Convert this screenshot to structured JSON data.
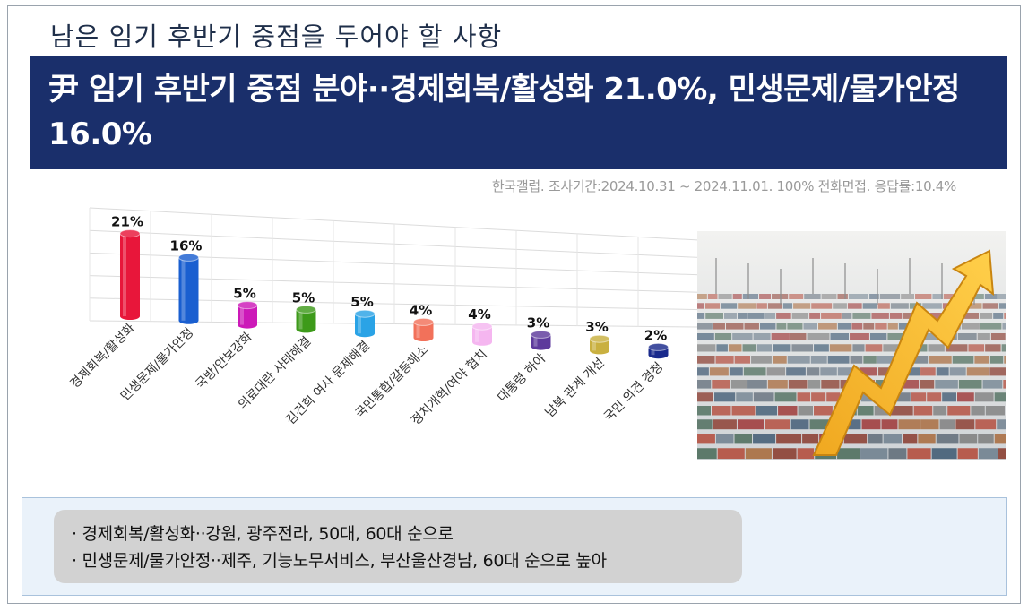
{
  "header": {
    "subtitle": "남은 임기 후반기 중점을 두어야 할 사항",
    "headline": "尹 임기 후반기 중점 분야··경제회복/활성화 21.0%, 민생문제/물가안정 16.0%"
  },
  "source": "한국갤럽. 조사기간:2024.10.31 ~ 2024.11.01. 100% 전화면접. 응답률:10.4%",
  "chart_data": {
    "type": "bar",
    "categories": [
      "경제회복/활성화",
      "민생문제/물가안정",
      "국방/안보강화",
      "의료대란 사태해결",
      "김건희 여사 문제해결",
      "국민통합/갈등해소",
      "정치개혁/여야 협치",
      "대통령 하야",
      "남북 관계 개선",
      "국민 의견 경청"
    ],
    "values": [
      21,
      16,
      5,
      5,
      5,
      4,
      4,
      3,
      3,
      2
    ],
    "data_labels": [
      "21%",
      "16%",
      "5%",
      "5%",
      "5%",
      "4%",
      "4%",
      "3%",
      "3%",
      "2%"
    ],
    "colors": [
      "#e8163a",
      "#1a5fd0",
      "#cc19b8",
      "#3d9a1a",
      "#2aa3e6",
      "#f2715a",
      "#f5b6f0",
      "#5d3a9c",
      "#c9b040",
      "#1a2a8c"
    ],
    "ylim": [
      0,
      25
    ],
    "grid": true,
    "style": "3d-cylinder"
  },
  "notes": {
    "line1": "· 경제회복/활성화··강원, 광주전라, 50대, 60대 순으로",
    "line2": "· 민생문제/물가안정··제주, 기능노무서비스, 부산울산경남, 60대 순으로 높아"
  }
}
